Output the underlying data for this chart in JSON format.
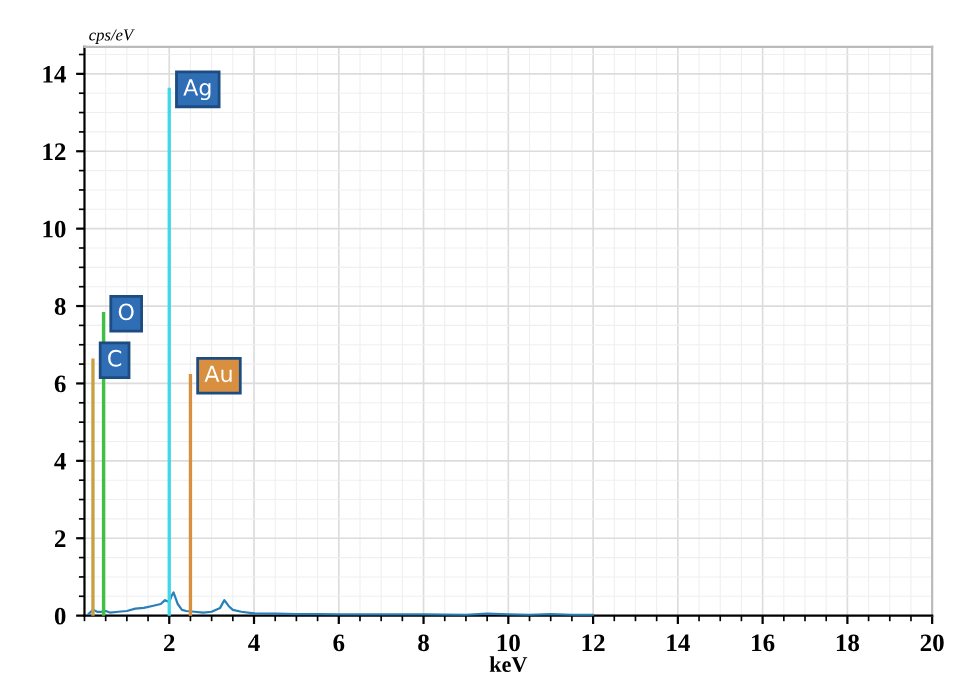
{
  "chart_data": {
    "type": "line",
    "xlabel": "keV",
    "ylabel": "cps/eV",
    "xlim": [
      0,
      20
    ],
    "ylim": [
      0,
      14.7
    ],
    "xticks": [
      2,
      4,
      6,
      8,
      10,
      12,
      14,
      16,
      18,
      20
    ],
    "yticks": [
      0,
      2,
      4,
      6,
      8,
      10,
      12,
      14
    ],
    "grid": true,
    "marker": "none",
    "line_style": "solid",
    "series": [
      {
        "color": "#2a7fb8",
        "x": [
          0.1,
          0.2,
          0.3,
          0.4,
          0.5,
          0.6,
          0.8,
          1.0,
          1.2,
          1.4,
          1.6,
          1.8,
          1.9,
          2.0,
          2.05,
          2.1,
          2.15,
          2.2,
          2.3,
          2.4,
          2.6,
          2.8,
          3.0,
          3.2,
          3.3,
          3.4,
          3.5,
          3.7,
          4.0,
          4.5,
          5.0,
          5.5,
          6.0,
          7.0,
          8.0,
          9.0,
          9.5,
          10.0,
          10.5,
          11.0,
          11.5,
          12.0
        ],
        "values": [
          0.05,
          0.15,
          0.1,
          0.1,
          0.12,
          0.08,
          0.1,
          0.12,
          0.18,
          0.2,
          0.25,
          0.3,
          0.4,
          0.35,
          0.5,
          0.6,
          0.45,
          0.3,
          0.15,
          0.12,
          0.1,
          0.08,
          0.1,
          0.2,
          0.4,
          0.25,
          0.15,
          0.1,
          0.06,
          0.05,
          0.04,
          0.04,
          0.03,
          0.03,
          0.03,
          0.02,
          0.05,
          0.03,
          0.02,
          0.04,
          0.02,
          0.02
        ]
      },
      {
        "name": "C",
        "color": "#c8a040",
        "x": [
          0.2,
          0.2
        ],
        "values": [
          0,
          6.6
        ]
      },
      {
        "name": "O",
        "color": "#40c040",
        "x": [
          0.45,
          0.45
        ],
        "values": [
          0,
          7.8
        ]
      },
      {
        "name": "Ag",
        "color": "#40d8e8",
        "x": [
          2.0,
          2.0
        ],
        "values": [
          0,
          13.6
        ]
      },
      {
        "name": "Au",
        "color": "#d89040",
        "x": [
          2.5,
          2.5
        ],
        "values": [
          0,
          6.2
        ]
      }
    ]
  }
}
